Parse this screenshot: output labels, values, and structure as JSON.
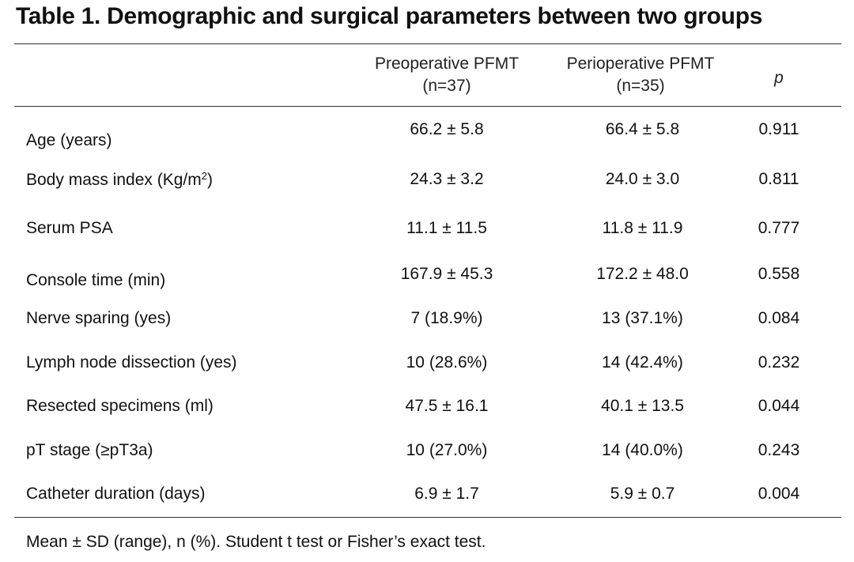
{
  "title": "Table 1. Demographic and surgical parameters between two groups",
  "columns": {
    "group1_line1": "Preoperative PFMT",
    "group1_line2": "(n=37)",
    "group2_line1": "Perioperative PFMT",
    "group2_line2": "(n=35)",
    "p": "p"
  },
  "rows": [
    {
      "label": "Age (years)",
      "g1": "66.2 ± 5.8",
      "g2": "66.4 ± 5.8",
      "p": "0.911"
    },
    {
      "label": "Body mass index (Kg/m",
      "label_sup": "2",
      "label_suffix": ")",
      "g1": "24.3 ± 3.2",
      "g2": "24.0 ± 3.0",
      "p": "0.811"
    },
    {
      "label": "Serum PSA",
      "g1": "11.1 ± 11.5",
      "g2": "11.8 ± 11.9",
      "p": "0.777"
    },
    {
      "label": "Console time (min)",
      "g1": "167.9 ± 45.3",
      "g2": "172.2 ± 48.0",
      "p": "0.558"
    },
    {
      "label": "Nerve sparing (yes)",
      "g1": "7 (18.9%)",
      "g2": "13 (37.1%)",
      "p": "0.084"
    },
    {
      "label": "Lymph node dissection (yes)",
      "g1": "10 (28.6%)",
      "g2": "14 (42.4%)",
      "p": "0.232"
    },
    {
      "label": "Resected specimens (ml)",
      "g1": "47.5 ± 16.1",
      "g2": "40.1 ± 13.5",
      "p": "0.044"
    },
    {
      "label": "pT stage (≥pT3a)",
      "g1": "10 (27.0%)",
      "g2": "14 (40.0%)",
      "p": "0.243"
    },
    {
      "label": "Catheter duration (days)",
      "g1": "6.9 ± 1.7",
      "g2": "5.9 ± 0.7",
      "p": "0.004"
    }
  ],
  "footnote": "Mean ± SD (range), n (%). Student t test or Fisher’s exact test."
}
